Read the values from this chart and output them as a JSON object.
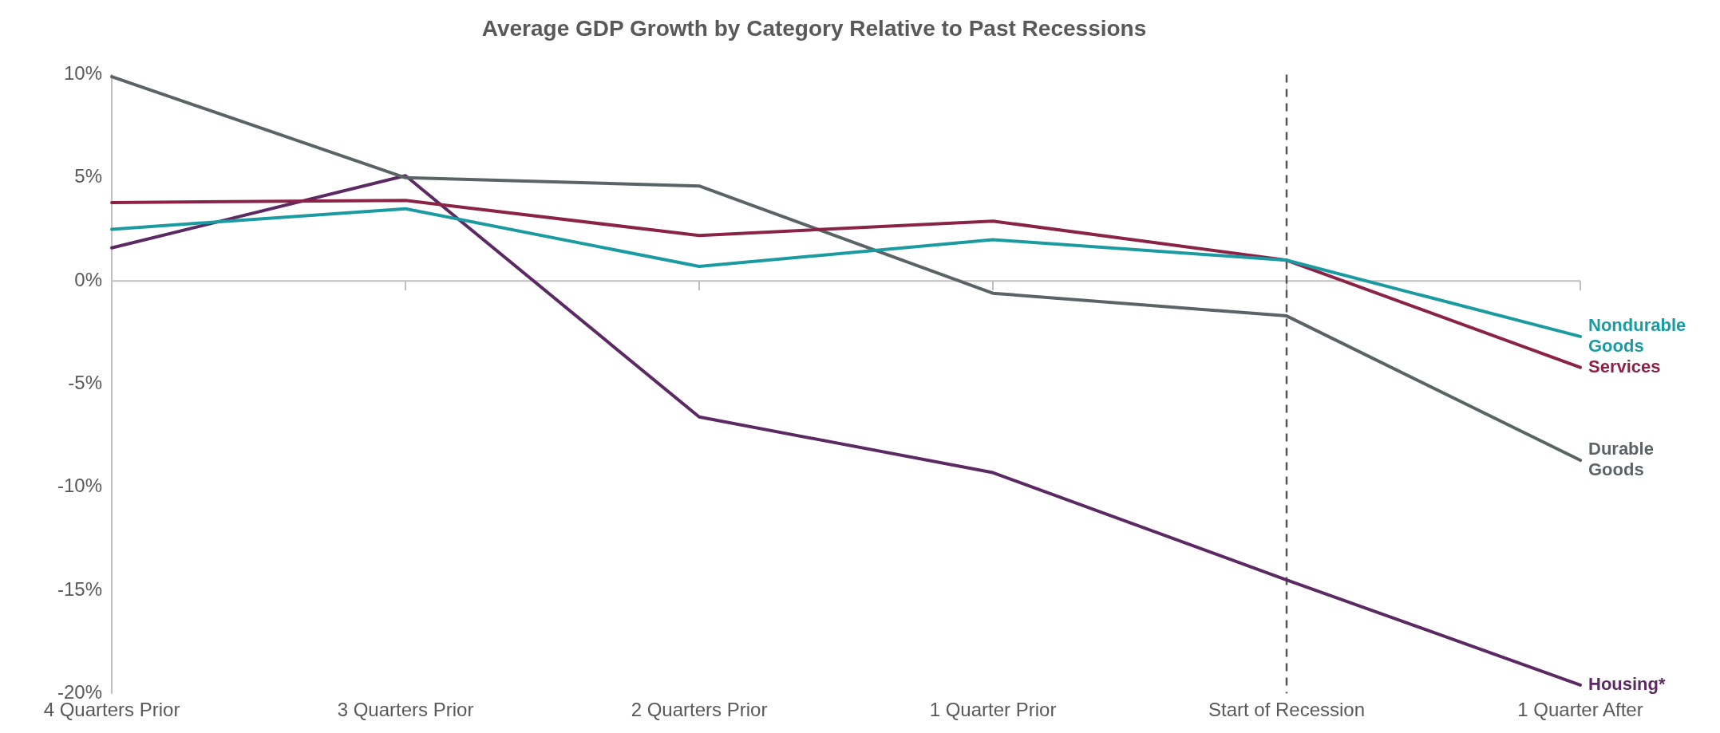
{
  "chart_data": {
    "type": "line",
    "title": "Average GDP Growth by Category Relative to Past Recessions",
    "categories": [
      "4 Quarters Prior",
      "3 Quarters Prior",
      "2 Quarters Prior",
      "1 Quarter Prior",
      "Start of Recession",
      "1 Quarter After"
    ],
    "series": [
      {
        "name": "Nondurable Goods",
        "color": "#1a9ba1",
        "values": [
          2.5,
          3.5,
          0.7,
          2.0,
          1.0,
          -2.7
        ]
      },
      {
        "name": "Services",
        "color": "#8b2346",
        "values": [
          3.8,
          3.9,
          2.2,
          2.9,
          1.0,
          -4.2
        ]
      },
      {
        "name": "Durable Goods",
        "color": "#5a6466",
        "values": [
          9.9,
          5.0,
          4.6,
          -0.6,
          -1.7,
          -8.7
        ]
      },
      {
        "name": "Housing*",
        "color": "#5b2a63",
        "values": [
          1.6,
          5.1,
          -6.6,
          -9.3,
          -14.5,
          -19.6
        ]
      }
    ],
    "ylim": [
      -20,
      10
    ],
    "yticks": [
      {
        "value": -20,
        "label": "-20%"
      },
      {
        "value": -15,
        "label": "-15%"
      },
      {
        "value": -10,
        "label": "-10%"
      },
      {
        "value": -5,
        "label": "-5%"
      },
      {
        "value": 0,
        "label": "0%"
      },
      {
        "value": 5,
        "label": "5%"
      },
      {
        "value": 10,
        "label": "10%"
      }
    ],
    "ref_lines": [
      {
        "axis": "x",
        "value": "Start of Recession",
        "color": "#555555",
        "line_style": "dashed"
      }
    ],
    "marker": "none",
    "line_style": "solid",
    "grid": false,
    "legend": false
  }
}
